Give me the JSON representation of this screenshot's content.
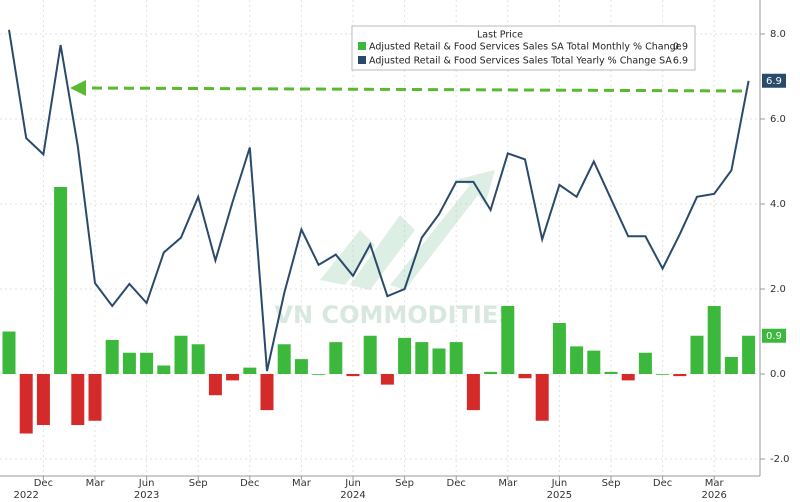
{
  "chart_data": {
    "type": "bar_line",
    "legend_title": "Last Price",
    "watermark": "VN COMMODITIES",
    "categories": [
      null,
      null,
      "Dec",
      null,
      null,
      "Mar",
      null,
      null,
      "Jun",
      null,
      null,
      "Sep",
      null,
      null,
      "Dec",
      null,
      null,
      "Mar",
      null,
      null,
      "Jun",
      null,
      null,
      "Sep",
      null,
      null,
      "Dec",
      null,
      null,
      "Mar",
      null,
      null,
      "Jun",
      null,
      null,
      "Sep",
      null,
      null,
      "Dec",
      null,
      null,
      "Mar",
      null,
      null
    ],
    "x_groups": [
      "2022",
      "2023",
      "2024",
      "2025",
      "2026"
    ],
    "series": [
      {
        "name": "Adjusted Retail & Food Services Sales SA Total Monthly % Change",
        "type": "bar",
        "color": "#3cb83c",
        "negative_color": "#d42a2a",
        "values": [
          1.0,
          -1.4,
          -1.2,
          4.4,
          -1.2,
          -1.1,
          0.8,
          0.5,
          0.5,
          0.2,
          0.9,
          0.7,
          -0.5,
          -0.15,
          0.15,
          -0.85,
          0.7,
          0.35,
          0.0,
          0.75,
          -0.05,
          0.9,
          -0.25,
          0.85,
          0.75,
          0.6,
          0.75,
          -0.85,
          0.05,
          1.6,
          -0.1,
          -1.1,
          1.2,
          0.65,
          0.55,
          0.05,
          -0.15,
          0.5,
          0.0,
          -0.05,
          0.9,
          1.6,
          0.4,
          0.9
        ]
      },
      {
        "name": "Adjusted Retail & Food Services Sales Total Yearly % Change SA",
        "type": "line",
        "color": "#2b4a6b",
        "values": [
          8.1,
          5.55,
          5.17,
          7.74,
          5.36,
          2.14,
          1.6,
          2.12,
          1.67,
          2.86,
          3.21,
          4.17,
          2.67,
          4.05,
          5.33,
          0.07,
          1.9,
          3.4,
          2.57,
          2.81,
          2.31,
          3.05,
          1.83,
          2.0,
          3.21,
          3.76,
          4.52,
          4.52,
          3.86,
          5.19,
          5.05,
          3.17,
          4.45,
          4.17,
          5.0,
          4.12,
          3.24,
          3.24,
          2.48,
          3.29,
          4.17,
          4.24,
          4.79,
          6.9
        ]
      }
    ],
    "ylim": [
      -2.4,
      8.8
    ],
    "yticks": [
      {
        "value": 8,
        "label": "8.0"
      },
      {
        "value": 6,
        "label": "6.0"
      },
      {
        "value": 4,
        "label": "4.0"
      },
      {
        "value": 2,
        "label": "2.0"
      },
      {
        "value": 0,
        "label": "0.0"
      },
      {
        "value": -2,
        "label": "-2.0"
      }
    ],
    "grid": true
  }
}
